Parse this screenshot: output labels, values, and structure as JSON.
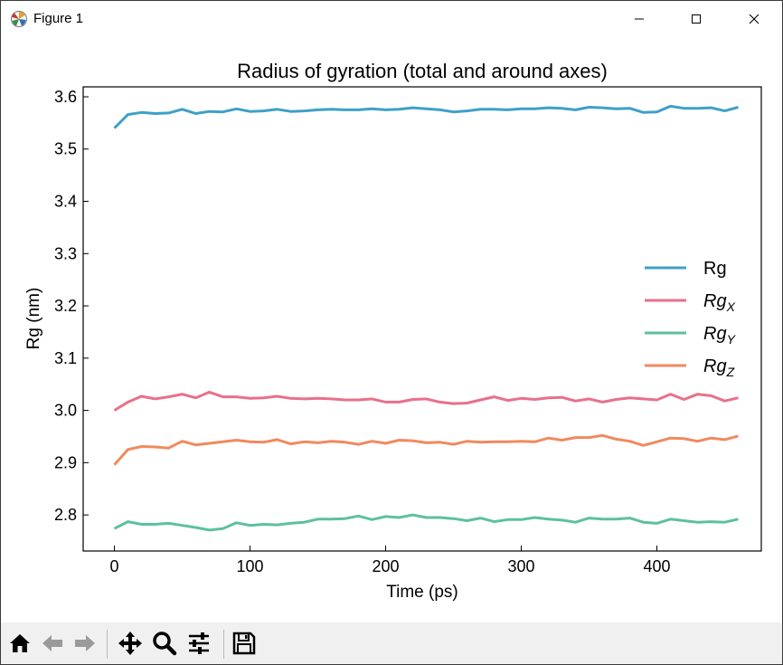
{
  "window": {
    "title": "Figure 1",
    "icons": {
      "app": "matplotlib-logo-icon",
      "minimize": "minimize-icon",
      "maximize": "maximize-icon",
      "close": "close-icon"
    }
  },
  "toolbar": {
    "tools": [
      "home-icon",
      "back-arrow-icon",
      "forward-arrow-icon",
      "pan-icon",
      "zoom-icon",
      "configure-subplots-icon",
      "save-icon"
    ]
  },
  "chart_data": {
    "type": "line",
    "title": "Radius of gyration (total and around axes)",
    "xlabel": "Time (ps)",
    "ylabel": "Rg (nm)",
    "xlim": [
      -23,
      477
    ],
    "ylim": [
      2.731,
      3.619
    ],
    "xticks": [
      0,
      100,
      200,
      300,
      400
    ],
    "xtick_labels": [
      "0",
      "100",
      "200",
      "300",
      "400"
    ],
    "yticks": [
      2.8,
      2.9,
      3.0,
      3.1,
      3.2,
      3.3,
      3.4,
      3.5,
      3.6
    ],
    "ytick_labels": [
      "2.8",
      "2.9",
      "3.0",
      "3.1",
      "3.2",
      "3.3",
      "3.4",
      "3.5",
      "3.6"
    ],
    "grid": false,
    "legend_position": "center-right",
    "x": [
      0,
      10,
      20,
      30,
      40,
      50,
      60,
      70,
      80,
      90,
      100,
      110,
      120,
      130,
      140,
      150,
      160,
      170,
      180,
      190,
      200,
      210,
      220,
      230,
      240,
      250,
      260,
      270,
      280,
      290,
      300,
      310,
      320,
      330,
      340,
      350,
      360,
      370,
      380,
      390,
      400,
      410,
      420,
      430,
      440,
      450,
      460
    ],
    "series": [
      {
        "name": "Rg",
        "legend_main": "Rg",
        "legend_sub": "",
        "color": "#3ea0c8",
        "values": [
          3.54,
          3.566,
          3.57,
          3.568,
          3.569,
          3.576,
          3.568,
          3.572,
          3.571,
          3.577,
          3.572,
          3.573,
          3.576,
          3.572,
          3.573,
          3.575,
          3.576,
          3.575,
          3.575,
          3.577,
          3.575,
          3.576,
          3.579,
          3.577,
          3.575,
          3.571,
          3.573,
          3.576,
          3.576,
          3.575,
          3.577,
          3.577,
          3.579,
          3.578,
          3.575,
          3.58,
          3.579,
          3.577,
          3.578,
          3.57,
          3.571,
          3.582,
          3.578,
          3.578,
          3.579,
          3.573,
          3.58
        ]
      },
      {
        "name": "Rg_X",
        "legend_main": "Rg",
        "legend_sub": "X",
        "color": "#e8708a",
        "values": [
          3.0,
          3.016,
          3.027,
          3.022,
          3.026,
          3.031,
          3.024,
          3.035,
          3.026,
          3.026,
          3.023,
          3.024,
          3.027,
          3.023,
          3.022,
          3.023,
          3.022,
          3.02,
          3.02,
          3.022,
          3.016,
          3.016,
          3.021,
          3.022,
          3.016,
          3.013,
          3.014,
          3.02,
          3.026,
          3.019,
          3.023,
          3.021,
          3.024,
          3.025,
          3.018,
          3.022,
          3.016,
          3.021,
          3.024,
          3.022,
          3.02,
          3.031,
          3.021,
          3.031,
          3.028,
          3.018,
          3.024
        ]
      },
      {
        "name": "Rg_Y",
        "legend_main": "Rg",
        "legend_sub": "Y",
        "color": "#5dc0a0",
        "values": [
          2.774,
          2.787,
          2.782,
          2.782,
          2.784,
          2.78,
          2.776,
          2.771,
          2.774,
          2.785,
          2.78,
          2.782,
          2.781,
          2.784,
          2.786,
          2.792,
          2.792,
          2.793,
          2.798,
          2.791,
          2.797,
          2.795,
          2.8,
          2.795,
          2.795,
          2.793,
          2.789,
          2.794,
          2.787,
          2.791,
          2.791,
          2.795,
          2.792,
          2.79,
          2.786,
          2.794,
          2.792,
          2.792,
          2.794,
          2.786,
          2.784,
          2.792,
          2.789,
          2.786,
          2.787,
          2.786,
          2.792
        ]
      },
      {
        "name": "Rg_Z",
        "legend_main": "Rg",
        "legend_sub": "Z",
        "color": "#f08a5d",
        "values": [
          2.896,
          2.925,
          2.931,
          2.93,
          2.928,
          2.941,
          2.934,
          2.937,
          2.94,
          2.943,
          2.94,
          2.939,
          2.944,
          2.936,
          2.94,
          2.938,
          2.941,
          2.939,
          2.935,
          2.941,
          2.937,
          2.943,
          2.942,
          2.938,
          2.939,
          2.935,
          2.941,
          2.939,
          2.94,
          2.94,
          2.941,
          2.94,
          2.947,
          2.943,
          2.948,
          2.948,
          2.952,
          2.945,
          2.941,
          2.933,
          2.94,
          2.947,
          2.946,
          2.941,
          2.947,
          2.944,
          2.951
        ]
      }
    ]
  }
}
